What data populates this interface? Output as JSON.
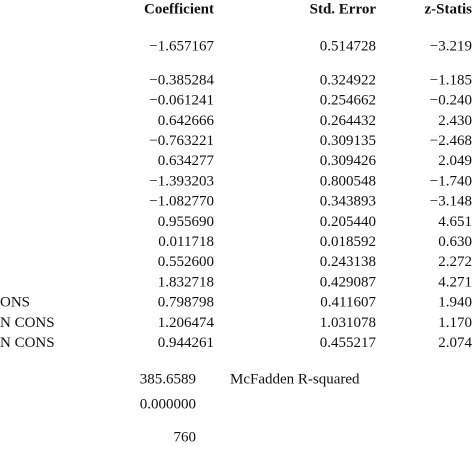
{
  "table": {
    "headers": [
      "Coefficient",
      "Std. Error",
      "z-Statis"
    ],
    "rows": [
      {
        "values": [
          "−1.657167",
          "0.514728",
          "−3.219"
        ]
      },
      {
        "values": [
          "−0.385284",
          "0.324922",
          "−1.185"
        ]
      },
      {
        "values": [
          "−0.061241",
          "0.254662",
          "−0.240"
        ]
      },
      {
        "values": [
          "0.642666",
          "0.264432",
          "2.430"
        ]
      },
      {
        "values": [
          "−0.763221",
          "0.309135",
          "−2.468"
        ]
      },
      {
        "values": [
          "0.634277",
          "0.309426",
          "2.049"
        ]
      },
      {
        "values": [
          "−1.393203",
          "0.800548",
          "−1.740"
        ]
      },
      {
        "values": [
          "−1.082770",
          "0.343893",
          "−3.148"
        ]
      },
      {
        "values": [
          "0.955690",
          "0.205440",
          "4.651"
        ]
      },
      {
        "values": [
          "0.011718",
          "0.018592",
          "0.630"
        ]
      },
      {
        "values": [
          "0.552600",
          "0.243138",
          "2.272"
        ]
      },
      {
        "values": [
          "1.832718",
          "0.429087",
          "4.271"
        ]
      },
      {
        "label": "ONS",
        "values": [
          "0.798798",
          "0.411607",
          "1.940"
        ]
      },
      {
        "label": "N CONS",
        "values": [
          "1.206474",
          "1.031078",
          "1.170"
        ]
      },
      {
        "label": "N CONS",
        "values": [
          "0.944261",
          "0.455217",
          "2.074"
        ]
      }
    ],
    "stats": [
      {
        "value": "385.6589",
        "label": "McFadden R-squared"
      },
      {
        "value": "0.000000"
      },
      {
        "value": "760"
      }
    ]
  }
}
